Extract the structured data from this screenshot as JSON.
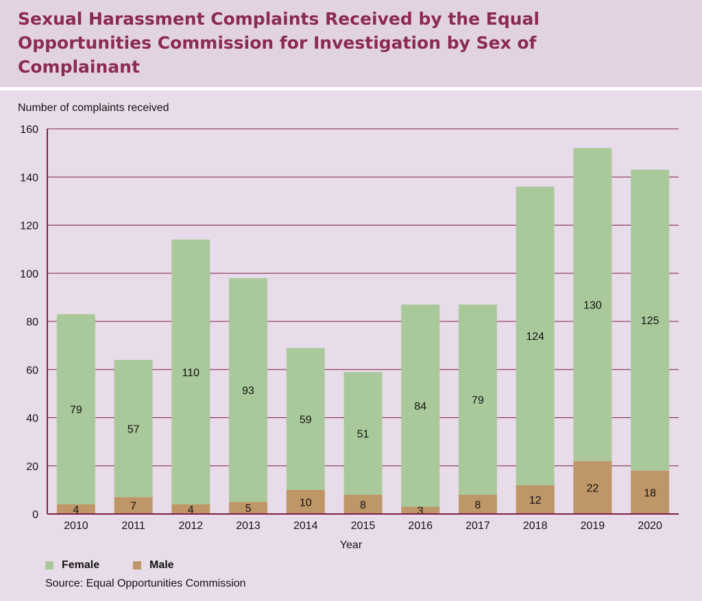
{
  "title": "Sexual Harassment Complaints Received by the Equal Opportunities Commission for Investigation by Sex of Complainant",
  "ylabel": "Number of complaints received",
  "xlabel": "Year",
  "source": "Source:  Equal Opportunities Commission",
  "colors": {
    "background": "#e6d8e6",
    "title": "#8b2a52",
    "axis": "#7a1f45",
    "female": "#a9c99a",
    "male": "#bf9668"
  },
  "legend": [
    {
      "name": "Female",
      "color": "#a9c99a"
    },
    {
      "name": "Male",
      "color": "#bf9668"
    }
  ],
  "chart_data": {
    "type": "bar",
    "stacked": true,
    "categories": [
      "2010",
      "2011",
      "2012",
      "2013",
      "2014",
      "2015",
      "2016",
      "2017",
      "2018",
      "2019",
      "2020"
    ],
    "series": [
      {
        "name": "Male",
        "values": [
          4,
          7,
          4,
          5,
          10,
          8,
          3,
          8,
          12,
          22,
          18
        ]
      },
      {
        "name": "Female",
        "values": [
          79,
          57,
          110,
          93,
          59,
          51,
          84,
          79,
          124,
          130,
          125
        ]
      }
    ],
    "yticks": [
      0,
      20,
      40,
      60,
      80,
      100,
      120,
      140,
      160
    ],
    "ylim": [
      0,
      160
    ],
    "grid": true,
    "legend_position": "bottom-left"
  }
}
